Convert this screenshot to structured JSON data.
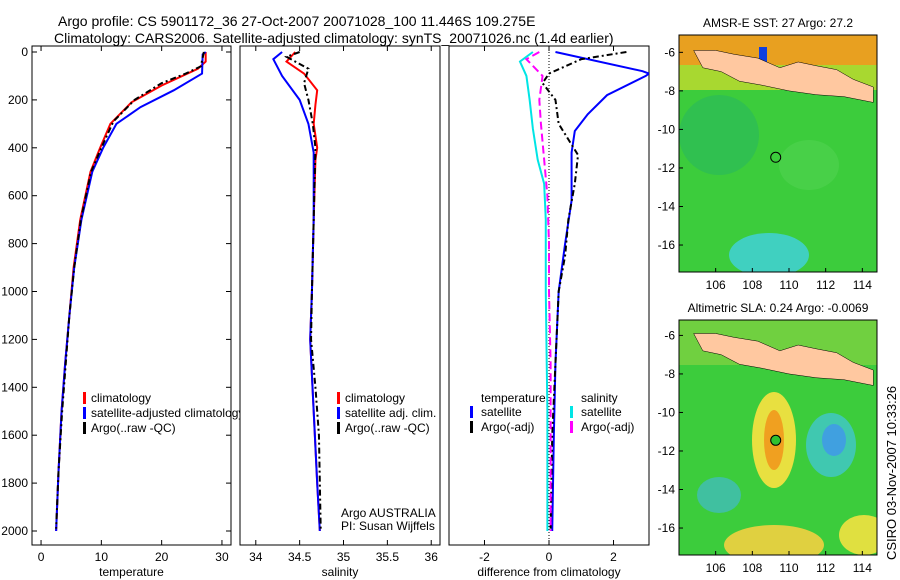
{
  "title_line1": "Argo profile: CS 5901172_36 27-Oct-2007 20071028_100 11.446S 109.275E",
  "title_line2": "Climatology: CARS2006. Satellite-adjusted climatology: synTS_20071026.nc (1.4d earlier)",
  "side_label": "CSIRO 03-Nov-2007 10:33:26",
  "colors": {
    "climatology": "#ff0000",
    "satellite": "#0000ff",
    "argo": "#000000",
    "sal_satellite": "#00e5e5",
    "sal_argo": "#ff00ff"
  },
  "chart_data": [
    {
      "type": "line",
      "id": "temperature",
      "xlabel": "temperature",
      "ylabel": "",
      "xlim": [
        -1.5,
        31.5
      ],
      "ylim": [
        2060,
        0
      ],
      "xticks": [
        0,
        10,
        20,
        30
      ],
      "yticks": [
        0,
        200,
        400,
        600,
        800,
        1000,
        1200,
        1400,
        1600,
        1800,
        2000
      ],
      "legend": [
        "climatology",
        "satellite-adjusted climatology",
        "Argo(..raw -QC)"
      ],
      "legend_placement": "lower-right",
      "series": [
        {
          "name": "climatology",
          "color": "#ff0000",
          "dash": "",
          "points": [
            [
              27.3,
              0
            ],
            [
              27.3,
              40
            ],
            [
              26,
              70
            ],
            [
              20,
              140
            ],
            [
              15,
              210
            ],
            [
              11.5,
              300
            ],
            [
              9.8,
              400
            ],
            [
              8.2,
              500
            ],
            [
              6.5,
              700
            ],
            [
              5.4,
              900
            ],
            [
              4.7,
              1100
            ],
            [
              4,
              1300
            ],
            [
              3.4,
              1500
            ],
            [
              2.9,
              1750
            ],
            [
              2.5,
              2000
            ]
          ]
        },
        {
          "name": "satellite-adjusted climatology",
          "color": "#0000ff",
          "dash": "",
          "points": [
            [
              27.3,
              0
            ],
            [
              26.8,
              10
            ],
            [
              26.7,
              90
            ],
            [
              22,
              160
            ],
            [
              16.5,
              230
            ],
            [
              12.5,
              300
            ],
            [
              10.3,
              400
            ],
            [
              8.5,
              500
            ],
            [
              6.7,
              700
            ],
            [
              5.5,
              900
            ],
            [
              4.7,
              1100
            ],
            [
              4,
              1300
            ],
            [
              3.4,
              1500
            ],
            [
              2.9,
              1750
            ],
            [
              2.5,
              2000
            ]
          ]
        },
        {
          "name": "Argo(..raw -QC)",
          "color": "#000000",
          "dash": "6,3,2,3",
          "points": [
            [
              27,
              0
            ],
            [
              26.5,
              60
            ],
            [
              24,
              90
            ],
            [
              20,
              130
            ],
            [
              15.5,
              200
            ],
            [
              12,
              290
            ],
            [
              10,
              400
            ],
            [
              8.3,
              500
            ],
            [
              6.6,
              700
            ],
            [
              5.5,
              900
            ],
            [
              4.7,
              1100
            ],
            [
              4.1,
              1300
            ],
            [
              3.5,
              1500
            ],
            [
              2.9,
              1750
            ],
            [
              2.5,
              1990
            ]
          ]
        }
      ]
    },
    {
      "type": "line",
      "id": "salinity",
      "xlabel": "salinity",
      "ylabel": "",
      "xlim": [
        33.82,
        36.1
      ],
      "ylim": [
        2060,
        0
      ],
      "xticks": [
        34,
        34.5,
        35,
        35.5,
        36
      ],
      "yticks": [],
      "legend": [
        "climatology",
        "satellite adj. clim.",
        "Argo(..raw -QC)"
      ],
      "legend_placement": "lower-right",
      "annotations": [
        "Argo AUSTRALIA",
        "PI: Susan Wijffels"
      ],
      "series": [
        {
          "name": "climatology",
          "color": "#ff0000",
          "dash": "",
          "points": [
            [
              34.45,
              0
            ],
            [
              34.35,
              40
            ],
            [
              34.55,
              90
            ],
            [
              34.7,
              160
            ],
            [
              34.68,
              220
            ],
            [
              34.66,
              300
            ],
            [
              34.7,
              400
            ],
            [
              34.68,
              450
            ],
            [
              34.66,
              700
            ],
            [
              34.64,
              1000
            ],
            [
              34.62,
              1200
            ],
            [
              34.66,
              1500
            ],
            [
              34.7,
              1800
            ],
            [
              34.73,
              2000
            ]
          ]
        },
        {
          "name": "satellite adj. clim.",
          "color": "#0000ff",
          "dash": "",
          "points": [
            [
              34.3,
              0
            ],
            [
              34.2,
              30
            ],
            [
              34.3,
              100
            ],
            [
              34.5,
              200
            ],
            [
              34.6,
              300
            ],
            [
              34.66,
              420
            ],
            [
              34.66,
              700
            ],
            [
              34.64,
              1000
            ],
            [
              34.62,
              1200
            ],
            [
              34.66,
              1500
            ],
            [
              34.7,
              1800
            ],
            [
              34.73,
              2000
            ]
          ]
        },
        {
          "name": "Argo(..raw -QC)",
          "color": "#000000",
          "dash": "6,3,2,3",
          "points": [
            [
              34.5,
              0
            ],
            [
              34.35,
              20
            ],
            [
              34.6,
              70
            ],
            [
              34.55,
              130
            ],
            [
              34.6,
              200
            ],
            [
              34.65,
              300
            ],
            [
              34.68,
              400
            ],
            [
              34.66,
              700
            ],
            [
              34.64,
              1000
            ],
            [
              34.63,
              1200
            ],
            [
              34.68,
              1400
            ],
            [
              34.72,
              1600
            ],
            [
              34.73,
              1800
            ],
            [
              34.74,
              1990
            ]
          ]
        }
      ]
    },
    {
      "type": "line",
      "id": "difference",
      "xlabel": "difference from climatology",
      "ylabel": "",
      "xlim": [
        -3.1,
        3.1
      ],
      "ylim": [
        2060,
        0
      ],
      "xticks": [
        -2,
        0,
        2
      ],
      "yticks": [],
      "legend_temperature": {
        "title": "temperature",
        "items": [
          "satellite",
          "Argo(-adj)"
        ]
      },
      "legend_salinity": {
        "title": "salinity",
        "items": [
          "satellite",
          "Argo(-adj)"
        ]
      },
      "legend_placement": "lower-center",
      "series": [
        {
          "name": "temperature satellite",
          "color": "#0000ff",
          "dash": "",
          "points": [
            [
              0.2,
              0
            ],
            [
              2.9,
              80
            ],
            [
              3.1,
              90
            ],
            [
              3,
              100
            ],
            [
              1.8,
              180
            ],
            [
              1.2,
              260
            ],
            [
              0.8,
              330
            ],
            [
              0.7,
              420
            ],
            [
              0.7,
              620
            ],
            [
              0.5,
              800
            ],
            [
              0.3,
              1000
            ],
            [
              0.2,
              1300
            ],
            [
              0.15,
              1600
            ],
            [
              0.1,
              2000
            ]
          ]
        },
        {
          "name": "temperature Argo(-adj)",
          "color": "#000000",
          "dash": "6,3,2,3",
          "points": [
            [
              2.4,
              0
            ],
            [
              1,
              30
            ],
            [
              0,
              90
            ],
            [
              -0.2,
              130
            ],
            [
              0.2,
              200
            ],
            [
              0.3,
              300
            ],
            [
              0.9,
              430
            ],
            [
              0.8,
              550
            ],
            [
              0.6,
              700
            ],
            [
              0.5,
              850
            ],
            [
              0.3,
              1000
            ],
            [
              0.2,
              1300
            ],
            [
              0.1,
              1600
            ],
            [
              0.05,
              1990
            ]
          ]
        },
        {
          "name": "salinity satellite",
          "color": "#00e5e5",
          "dash": "",
          "points": [
            [
              -0.5,
              0
            ],
            [
              -0.9,
              40
            ],
            [
              -0.7,
              100
            ],
            [
              -0.6,
              200
            ],
            [
              -0.5,
              320
            ],
            [
              -0.35,
              450
            ],
            [
              -0.15,
              550
            ],
            [
              -0.1,
              700
            ],
            [
              -0.1,
              1000
            ],
            [
              -0.05,
              1500
            ],
            [
              -0.05,
              2000
            ]
          ]
        },
        {
          "name": "salinity Argo(-adj)",
          "color": "#ff00ff",
          "dash": "8,4",
          "points": [
            [
              -0.3,
              0
            ],
            [
              -0.7,
              30
            ],
            [
              -0.2,
              100
            ],
            [
              -0.3,
              200
            ],
            [
              -0.25,
              300
            ],
            [
              -0.15,
              450
            ],
            [
              -0.05,
              600
            ],
            [
              0,
              800
            ],
            [
              0,
              1000
            ],
            [
              0.05,
              1300
            ],
            [
              0.05,
              1600
            ],
            [
              0.05,
              2000
            ]
          ]
        }
      ]
    }
  ],
  "maps": [
    {
      "id": "sst",
      "title": "AMSR-E SST: 27 Argo: 27.2",
      "lon_ticks": [
        106,
        108,
        110,
        112,
        114
      ],
      "lat_ticks": [
        -6,
        -8,
        -10,
        -12,
        -14,
        -16
      ],
      "lon_range": [
        104,
        114.8
      ],
      "lat_range": [
        -5.1,
        -17.4
      ],
      "float_lon": 109.275,
      "float_lat": -11.446
    },
    {
      "id": "sla",
      "title": "Altimetric SLA: 0.24 Argo: -0.0069",
      "lon_ticks": [
        106,
        108,
        110,
        112,
        114
      ],
      "lat_ticks": [
        -6,
        -8,
        -10,
        -12,
        -14,
        -16
      ],
      "lon_range": [
        104,
        114.8
      ],
      "lat_range": [
        -5.2,
        -17.4
      ],
      "float_lon": 109.275,
      "float_lat": -11.446
    }
  ]
}
